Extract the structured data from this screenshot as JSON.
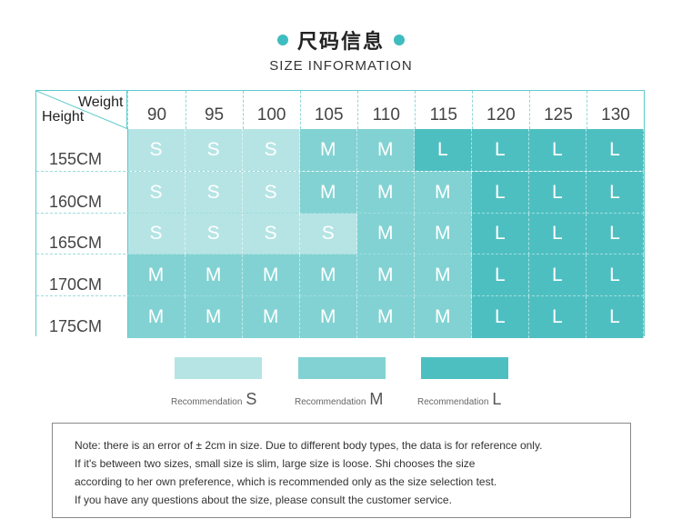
{
  "title": "尺码信息",
  "subtitle": "SIZE INFORMATION",
  "colors": {
    "S": "#b6e4e5",
    "M": "#82d2d3",
    "L": "#4ebfc1",
    "accent": "#3fbcc0"
  },
  "table": {
    "corner_top": "Weight",
    "corner_bottom": "Height",
    "weights": [
      "90",
      "95",
      "100",
      "105",
      "110",
      "115",
      "120",
      "125",
      "130"
    ],
    "rows": [
      {
        "height": "155CM",
        "sizes": [
          "S",
          "S",
          "S",
          "M",
          "M",
          "L",
          "L",
          "L",
          "L"
        ]
      },
      {
        "height": "160CM",
        "sizes": [
          "S",
          "S",
          "S",
          "M",
          "M",
          "M",
          "L",
          "L",
          "L"
        ]
      },
      {
        "height": "165CM",
        "sizes": [
          "S",
          "S",
          "S",
          "S",
          "M",
          "M",
          "L",
          "L",
          "L"
        ]
      },
      {
        "height": "170CM",
        "sizes": [
          "M",
          "M",
          "M",
          "M",
          "M",
          "M",
          "L",
          "L",
          "L"
        ]
      },
      {
        "height": "175CM",
        "sizes": [
          "M",
          "M",
          "M",
          "M",
          "M",
          "M",
          "L",
          "L",
          "L"
        ]
      }
    ]
  },
  "legend": [
    {
      "text": "Recommendation",
      "size": "S"
    },
    {
      "text": "Recommendation",
      "size": "M"
    },
    {
      "text": "Recommendation",
      "size": "L"
    }
  ],
  "note": [
    "Note: there is an error of ± 2cm in size. Due to different body types, the data is for reference only.",
    "If it's between two sizes, small size is slim, large size is loose. Shi chooses the size",
    "according to her own preference, which is recommended only as the size selection test.",
    " If you have any questions about the size, please consult the customer service."
  ]
}
